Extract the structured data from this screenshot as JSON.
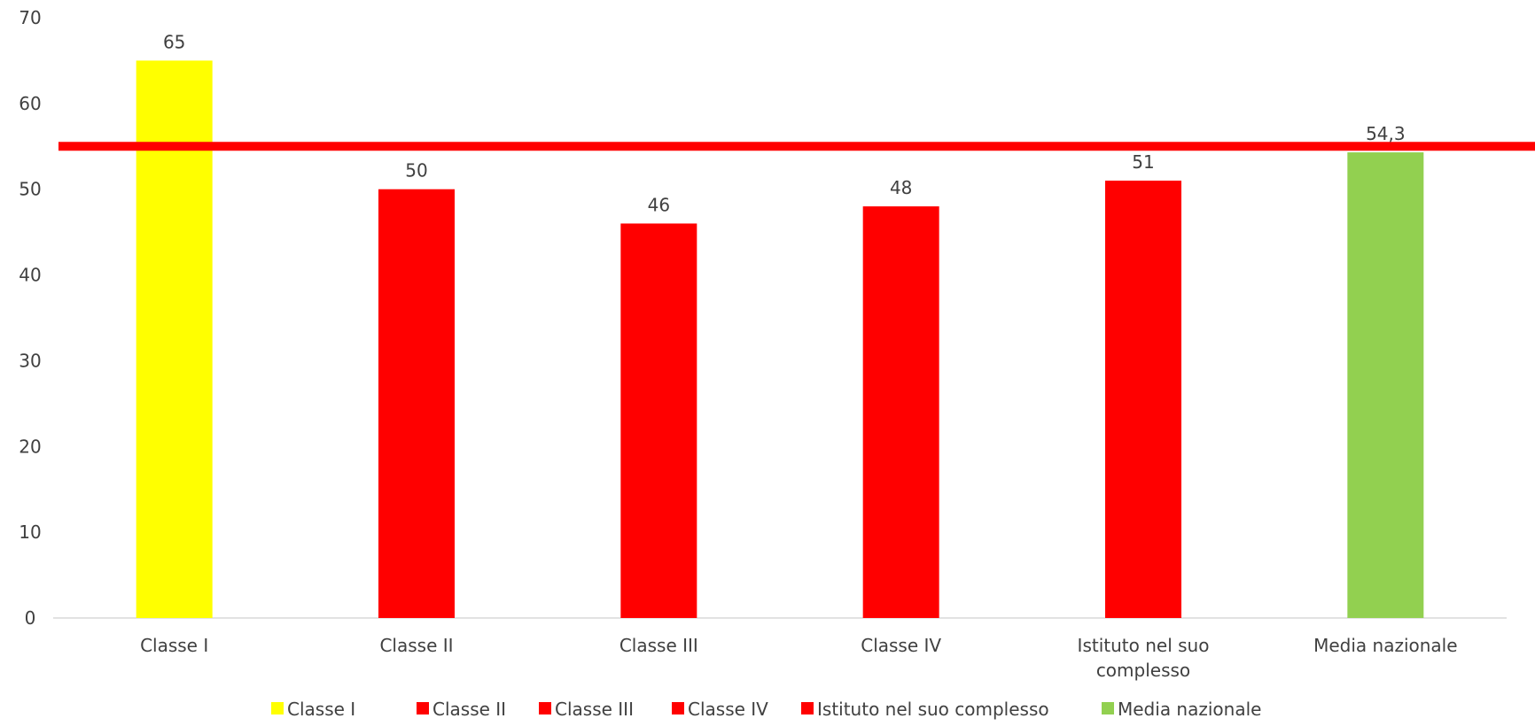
{
  "chart_data": {
    "type": "bar",
    "categories": [
      "Classe I",
      "Classe II",
      "Classe III",
      "Classe IV",
      "Istituto nel suo complesso",
      "Media nazionale"
    ],
    "values": [
      65,
      50,
      46,
      48,
      51,
      54.3
    ],
    "data_labels": [
      "65",
      "50",
      "46",
      "48",
      "51",
      "54,3"
    ],
    "bar_colors": [
      "#FFFF00",
      "#FF0000",
      "#FF0000",
      "#FF0000",
      "#FF0000",
      "#92D050"
    ],
    "reference_line": {
      "value": 55,
      "color": "#FF0000"
    },
    "ylim": [
      0,
      70
    ],
    "yticks": [
      0,
      10,
      20,
      30,
      40,
      50,
      60,
      70
    ],
    "grid": false,
    "legend_position": "bottom",
    "legend": [
      {
        "label": "Classe I",
        "color": "#FFFF00"
      },
      {
        "label": "Classe II",
        "color": "#FF0000"
      },
      {
        "label": "Classe III",
        "color": "#FF0000"
      },
      {
        "label": "Classe IV",
        "color": "#FF0000"
      },
      {
        "label": "Istituto nel suo complesso",
        "color": "#FF0000"
      },
      {
        "label": "Media nazionale",
        "color": "#92D050"
      }
    ],
    "title": "",
    "xlabel": "",
    "ylabel": ""
  }
}
